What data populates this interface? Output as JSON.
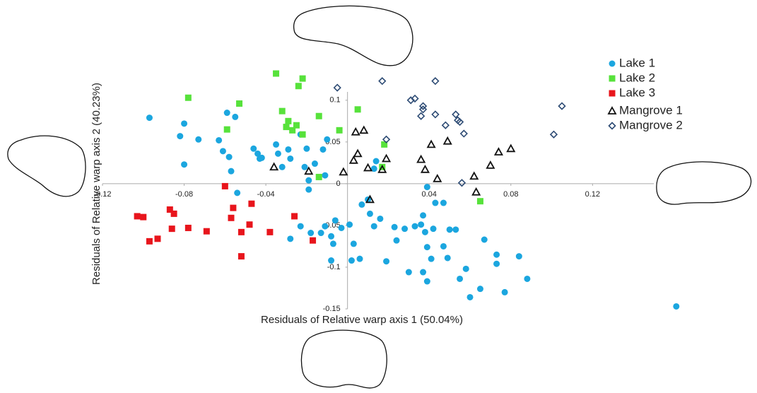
{
  "chart_data": {
    "type": "scatter",
    "xlabel": "Residuals of Relative warp axis 1 (50.04%)",
    "ylabel": "Residuals of Relative warp axis 2 (40.23%)",
    "xlim": [
      -0.12,
      0.15
    ],
    "ylim": [
      -0.15,
      0.11
    ],
    "xticks": [
      -0.12,
      -0.08,
      -0.04,
      0.04,
      0.08,
      0.12
    ],
    "yticks": [
      0.1,
      0.05,
      0,
      -0.05,
      -0.1,
      -0.15
    ],
    "grid": false,
    "legend": "top-right",
    "series": [
      {
        "name": "Lake 1",
        "color": "#1ba6df",
        "marker": "circle",
        "x": [
          -0.097,
          -0.08,
          -0.082,
          -0.073,
          -0.08,
          -0.059,
          -0.055,
          -0.063,
          -0.061,
          -0.058,
          -0.057,
          -0.054,
          -0.046,
          -0.044,
          -0.043,
          -0.042,
          -0.035,
          -0.034,
          -0.032,
          -0.028,
          -0.023,
          -0.02,
          -0.029,
          -0.021,
          -0.019,
          -0.019,
          -0.01,
          -0.012,
          -0.016,
          -0.011,
          -0.013,
          -0.011,
          -0.008,
          -0.007,
          -0.006,
          -0.003,
          -0.008,
          0.002,
          0.006,
          0.003,
          0.001,
          0.007,
          0.01,
          0.013,
          0.014,
          0.011,
          0.013,
          0.016,
          0.019,
          0.023,
          0.024,
          0.028,
          0.03,
          0.033,
          0.036,
          0.037,
          0.038,
          0.039,
          0.037,
          0.039,
          0.041,
          0.043,
          0.047,
          0.039,
          0.042,
          0.05,
          0.047,
          0.049,
          0.053,
          0.055,
          0.058,
          0.06,
          0.065,
          0.067,
          0.073,
          0.073,
          0.077,
          0.084,
          0.088,
          0.161,
          -0.028,
          -0.023,
          -0.018
        ],
        "y": [
          0.079,
          0.072,
          0.057,
          0.053,
          0.023,
          0.085,
          0.08,
          0.052,
          0.039,
          0.032,
          0.015,
          -0.011,
          0.042,
          0.036,
          0.03,
          0.031,
          0.047,
          0.036,
          0.02,
          0.03,
          0.059,
          0.042,
          0.041,
          0.02,
          -0.007,
          0.004,
          0.053,
          0.041,
          0.024,
          0.01,
          -0.059,
          -0.051,
          -0.063,
          -0.072,
          -0.044,
          -0.053,
          -0.092,
          -0.092,
          -0.09,
          -0.072,
          -0.049,
          -0.025,
          -0.019,
          0.018,
          0.027,
          -0.036,
          -0.051,
          -0.042,
          -0.093,
          -0.052,
          -0.068,
          -0.054,
          -0.106,
          -0.051,
          -0.049,
          -0.038,
          -0.058,
          -0.076,
          -0.106,
          -0.117,
          -0.09,
          -0.023,
          -0.023,
          -0.004,
          -0.054,
          -0.055,
          -0.075,
          -0.089,
          -0.055,
          -0.114,
          -0.102,
          -0.136,
          -0.126,
          -0.067,
          -0.085,
          -0.096,
          -0.13,
          -0.087,
          -0.114,
          -0.147,
          -0.066,
          -0.051,
          -0.059
        ]
      },
      {
        "name": "Lake 2",
        "color": "#57e23b",
        "marker": "square",
        "x": [
          -0.078,
          -0.053,
          -0.059,
          -0.035,
          -0.022,
          -0.024,
          -0.032,
          -0.029,
          -0.03,
          -0.025,
          -0.027,
          -0.022,
          -0.014,
          -0.004,
          0.005,
          0.018,
          0.017,
          -0.014,
          0.065
        ],
        "y": [
          0.103,
          0.096,
          0.065,
          0.132,
          0.126,
          0.117,
          0.087,
          0.075,
          0.068,
          0.07,
          0.064,
          0.059,
          0.081,
          0.064,
          0.089,
          0.047,
          0.02,
          0.008,
          -0.021
        ]
      },
      {
        "name": "Lake 3",
        "color": "#e8151c",
        "marker": "square",
        "x": [
          -0.103,
          -0.1,
          -0.097,
          -0.093,
          -0.087,
          -0.085,
          -0.086,
          -0.078,
          -0.069,
          -0.06,
          -0.056,
          -0.057,
          -0.052,
          -0.052,
          -0.047,
          -0.048,
          -0.038,
          -0.026,
          -0.017
        ],
        "y": [
          -0.039,
          -0.04,
          -0.069,
          -0.066,
          -0.031,
          -0.036,
          -0.054,
          -0.053,
          -0.057,
          -0.003,
          -0.029,
          -0.041,
          -0.058,
          -0.087,
          -0.024,
          -0.049,
          -0.058,
          -0.039,
          -0.068
        ]
      },
      {
        "name": "Mangrove 1",
        "color": "#111111",
        "marker": "triangle",
        "x": [
          -0.036,
          -0.019,
          -0.002,
          0.003,
          0.004,
          0.008,
          0.005,
          0.01,
          0.011,
          0.019,
          0.017,
          0.036,
          0.041,
          0.038,
          0.044,
          0.049,
          0.062,
          0.063,
          0.07,
          0.074,
          0.08
        ],
        "y": [
          0.02,
          0.015,
          0.014,
          0.028,
          0.062,
          0.064,
          0.036,
          0.019,
          -0.019,
          0.03,
          0.017,
          0.029,
          0.047,
          0.017,
          0.006,
          0.051,
          0.009,
          -0.01,
          0.022,
          0.038,
          0.042
        ]
      },
      {
        "name": "Mangrove 2",
        "color": "#2d4b74",
        "marker": "diamond",
        "x": [
          -0.005,
          0.017,
          0.043,
          0.031,
          0.033,
          0.037,
          0.037,
          0.036,
          0.043,
          0.019,
          0.048,
          0.053,
          0.054,
          0.055,
          0.057,
          0.056,
          0.101,
          0.105
        ],
        "y": [
          0.115,
          0.123,
          0.123,
          0.1,
          0.102,
          0.093,
          0.089,
          0.081,
          0.083,
          0.053,
          0.07,
          0.083,
          0.076,
          0.074,
          0.06,
          0.001,
          0.059,
          0.093
        ]
      }
    ]
  }
}
